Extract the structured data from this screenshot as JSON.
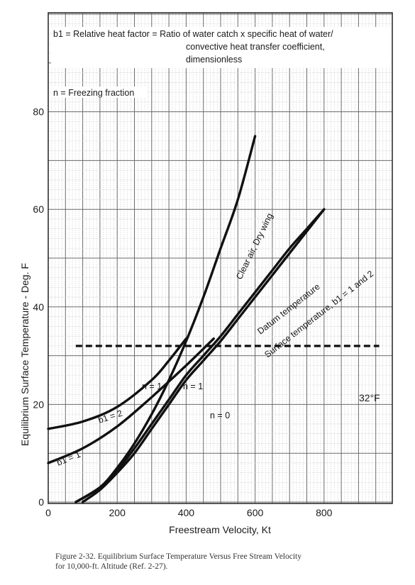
{
  "chart_data": {
    "type": "line",
    "xlabel": "Freestream Velocity, Kt",
    "ylabel": "Equilibrium Surface Temperature - Deg. F",
    "xlim": [
      0,
      1000
    ],
    "ylim": [
      0,
      100
    ],
    "x_ticks": [
      "0",
      "200",
      "400",
      "600",
      "800"
    ],
    "y_ticks": [
      "0",
      "20",
      "40",
      "60",
      "80"
    ],
    "grid": true,
    "legend_notes": [
      "b1 = Relative heat factor = Ratio of water catch x specific heat of water/",
      "convective heat transfer coefficient,",
      "dimensionless",
      "n = Freezing fraction"
    ],
    "reference_line": {
      "label": "32°F",
      "y": 32,
      "x_range": [
        80,
        960
      ]
    },
    "series": [
      {
        "name": "Clear air, Dry wing",
        "x": [
          80,
          150,
          200,
          250,
          300,
          350,
          400,
          450,
          500,
          550,
          600
        ],
        "y": [
          0,
          3,
          7,
          12,
          18,
          25,
          33,
          42,
          52,
          62,
          75
        ]
      },
      {
        "name": "Datum temperature",
        "x": [
          80,
          150,
          200,
          250,
          300,
          350,
          400,
          450,
          500,
          550,
          600,
          650,
          700,
          750,
          800
        ],
        "y": [
          0,
          3,
          6.5,
          11,
          16,
          21,
          26,
          30,
          34,
          38.5,
          43,
          47.5,
          52,
          56,
          60
        ]
      },
      {
        "name": "Surface temperature, b1 = 1 and 2",
        "x": [
          100,
          150,
          200,
          250,
          300,
          350,
          400,
          450,
          500,
          550,
          600,
          650,
          700,
          750,
          800
        ],
        "y": [
          0,
          2.5,
          6,
          10,
          15,
          20,
          25,
          29,
          33,
          37.5,
          42,
          46.5,
          51,
          55.5,
          60
        ]
      },
      {
        "name": "b1 = 2",
        "x": [
          0,
          100,
          200,
          300,
          350,
          400
        ],
        "y": [
          15,
          16.5,
          19.5,
          25,
          29,
          33.5
        ]
      },
      {
        "name": "b1 = 1",
        "x": [
          0,
          100,
          200,
          300,
          400,
          480
        ],
        "y": [
          8,
          11,
          15.5,
          21.5,
          28,
          33.5
        ]
      }
    ],
    "annotations": [
      "n = 1",
      "n = 1",
      "n = 0"
    ]
  },
  "caption": {
    "line1": "Figure 2-32.  Equilibrium Surface Temperature Versus Free Stream Velocity",
    "line2": "for 10,000-ft.  Altitude (Ref. 2-27)."
  }
}
